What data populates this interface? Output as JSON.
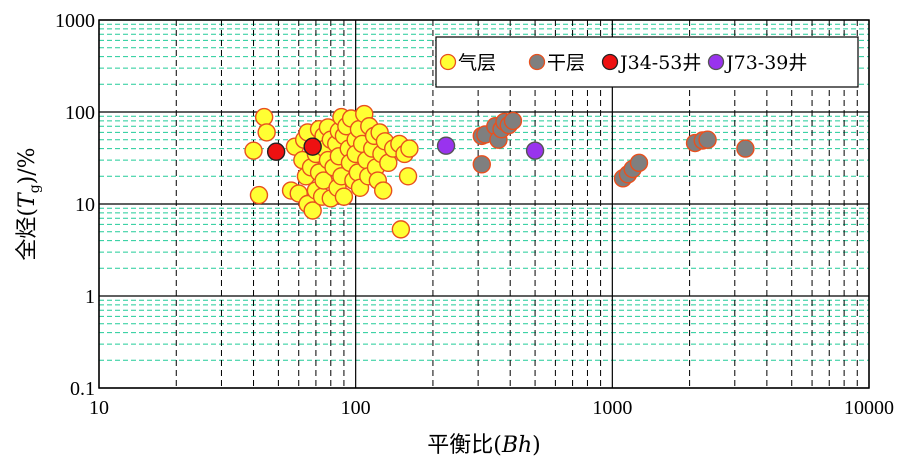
{
  "chart_data": {
    "type": "scatter",
    "xlabel_main": "平衡比(",
    "xlabel_italic": "Bh",
    "xlabel_close": ")",
    "ylabel_main": "全烃(",
    "ylabel_italic": "T",
    "ylabel_sub": "g",
    "ylabel_close": ")/%",
    "x_scale": "log",
    "y_scale": "log",
    "xlim": [
      10,
      10000
    ],
    "ylim": [
      0.1,
      1000
    ],
    "x_ticks": [
      10,
      100,
      1000,
      10000
    ],
    "x_tick_labels": [
      "10",
      "100",
      "1000",
      "10000"
    ],
    "y_ticks": [
      0.1,
      1,
      10,
      100,
      1000
    ],
    "y_tick_labels": [
      "0.1",
      "1",
      "10",
      "100",
      "1000"
    ],
    "grid": true,
    "legend_position": "top-right",
    "series": [
      {
        "name": "气层",
        "fill": "#FFFF33",
        "stroke": "#E8501E",
        "points": [
          [
            40,
            38
          ],
          [
            42,
            12.5
          ],
          [
            44,
            88
          ],
          [
            45,
            60
          ],
          [
            56,
            14
          ],
          [
            58,
            42
          ],
          [
            60,
            13
          ],
          [
            62,
            30
          ],
          [
            63,
            50
          ],
          [
            64,
            20
          ],
          [
            65,
            10
          ],
          [
            65,
            60
          ],
          [
            67,
            25
          ],
          [
            68,
            8.5
          ],
          [
            68,
            42
          ],
          [
            70,
            35
          ],
          [
            70,
            14
          ],
          [
            72,
            65
          ],
          [
            72,
            22
          ],
          [
            74,
            12
          ],
          [
            75,
            55
          ],
          [
            75,
            18
          ],
          [
            76,
            40
          ],
          [
            78,
            30
          ],
          [
            78,
            68
          ],
          [
            80,
            50
          ],
          [
            80,
            11.5
          ],
          [
            82,
            25
          ],
          [
            84,
            45
          ],
          [
            85,
            15
          ],
          [
            86,
            62
          ],
          [
            86,
            33
          ],
          [
            88,
            88
          ],
          [
            88,
            20
          ],
          [
            90,
            55
          ],
          [
            90,
            12
          ],
          [
            92,
            70
          ],
          [
            94,
            40
          ],
          [
            95,
            28
          ],
          [
            96,
            85
          ],
          [
            98,
            18
          ],
          [
            100,
            50
          ],
          [
            100,
            35
          ],
          [
            102,
            22
          ],
          [
            103,
            65
          ],
          [
            104,
            15
          ],
          [
            106,
            45
          ],
          [
            108,
            95
          ],
          [
            110,
            30
          ],
          [
            112,
            20
          ],
          [
            113,
            70
          ],
          [
            116,
            40
          ],
          [
            118,
            55
          ],
          [
            120,
            25
          ],
          [
            122,
            18
          ],
          [
            124,
            60
          ],
          [
            126,
            35
          ],
          [
            128,
            14
          ],
          [
            130,
            48
          ],
          [
            134,
            28
          ],
          [
            140,
            40
          ],
          [
            148,
            45
          ],
          [
            150,
            5.3
          ],
          [
            155,
            35
          ],
          [
            160,
            20
          ],
          [
            162,
            40
          ]
        ]
      },
      {
        "name": "干层",
        "fill": "#7F7F7F",
        "stroke": "#E8501E",
        "points": [
          [
            310,
            27
          ],
          [
            310,
            55
          ],
          [
            320,
            57
          ],
          [
            350,
            70
          ],
          [
            360,
            50
          ],
          [
            370,
            65
          ],
          [
            380,
            78
          ],
          [
            395,
            72
          ],
          [
            410,
            80
          ],
          [
            1100,
            19
          ],
          [
            1150,
            21
          ],
          [
            1200,
            24
          ],
          [
            1270,
            28
          ],
          [
            2100,
            46
          ],
          [
            2250,
            49
          ],
          [
            2350,
            50
          ],
          [
            3300,
            40
          ]
        ]
      },
      {
        "name": "J34-53井",
        "fill": "#EE1111",
        "stroke": "#222222",
        "points": [
          [
            49,
            37
          ],
          [
            68,
            42
          ]
        ]
      },
      {
        "name": "J73-39井",
        "fill": "#9933EE",
        "stroke": "#555555",
        "points": [
          [
            225,
            43
          ],
          [
            500,
            38
          ]
        ]
      }
    ]
  }
}
